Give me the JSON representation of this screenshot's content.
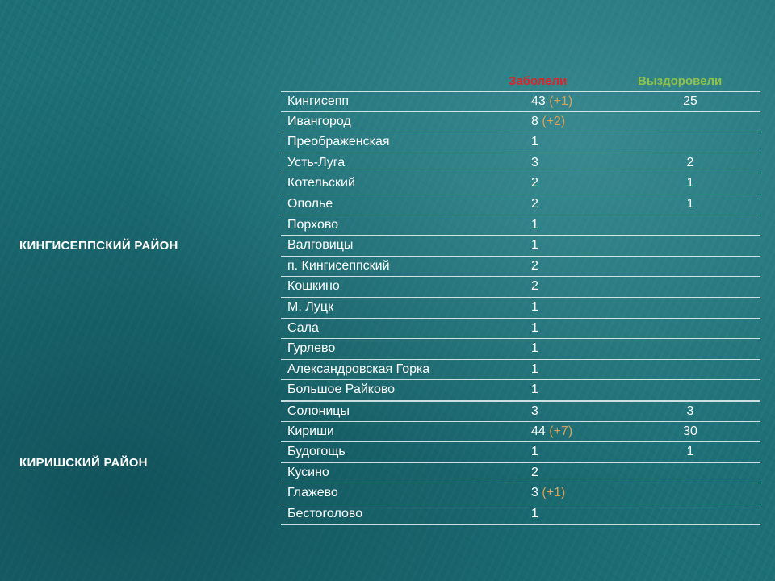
{
  "headers": {
    "sick": "Заболели",
    "recovered": "Выздоровели"
  },
  "groups": [
    {
      "district": "КИНГИСЕППСКИЙ РАЙОН",
      "rows": [
        {
          "name": "Кингисепп",
          "sick": "43",
          "delta": "(+1)",
          "recovered": "25"
        },
        {
          "name": "Ивангород",
          "sick": "8",
          "delta": "(+2)",
          "recovered": ""
        },
        {
          "name": "Преображенская",
          "sick": "1",
          "delta": "",
          "recovered": ""
        },
        {
          "name": "Усть-Луга",
          "sick": "3",
          "delta": "",
          "recovered": "2"
        },
        {
          "name": "Котельский",
          "sick": "2",
          "delta": "",
          "recovered": "1"
        },
        {
          "name": "Ополье",
          "sick": "2",
          "delta": "",
          "recovered": "1"
        },
        {
          "name": "Порхово",
          "sick": "1",
          "delta": "",
          "recovered": ""
        },
        {
          "name": "Валговицы",
          "sick": "1",
          "delta": "",
          "recovered": ""
        },
        {
          "name": "п. Кингисеппский",
          "sick": "2",
          "delta": "",
          "recovered": ""
        },
        {
          "name": "Кошкино",
          "sick": "2",
          "delta": "",
          "recovered": ""
        },
        {
          "name": "М. Луцк",
          "sick": "1",
          "delta": "",
          "recovered": ""
        },
        {
          "name": "Сала",
          "sick": "1",
          "delta": "",
          "recovered": ""
        },
        {
          "name": "Гурлево",
          "sick": "1",
          "delta": "",
          "recovered": ""
        },
        {
          "name": "Александровская Горка",
          "sick": "1",
          "delta": "",
          "recovered": ""
        },
        {
          "name": "Большое Райково",
          "sick": "1",
          "delta": "",
          "recovered": ""
        }
      ]
    },
    {
      "district": "КИРИШСКИЙ РАЙОН",
      "rows": [
        {
          "name": "Солоницы",
          "sick": "3",
          "delta": "",
          "recovered": "3"
        },
        {
          "name": "Кириши",
          "sick": "44",
          "delta": "(+7)",
          "recovered": "30"
        },
        {
          "name": "Будогощь",
          "sick": "1",
          "delta": "",
          "recovered": "1"
        },
        {
          "name": "Кусино",
          "sick": "2",
          "delta": "",
          "recovered": ""
        },
        {
          "name": "Глажево",
          "sick": "3",
          "delta": "(+1)",
          "recovered": ""
        },
        {
          "name": "Бестоголово",
          "sick": "1",
          "delta": "",
          "recovered": ""
        }
      ]
    }
  ]
}
